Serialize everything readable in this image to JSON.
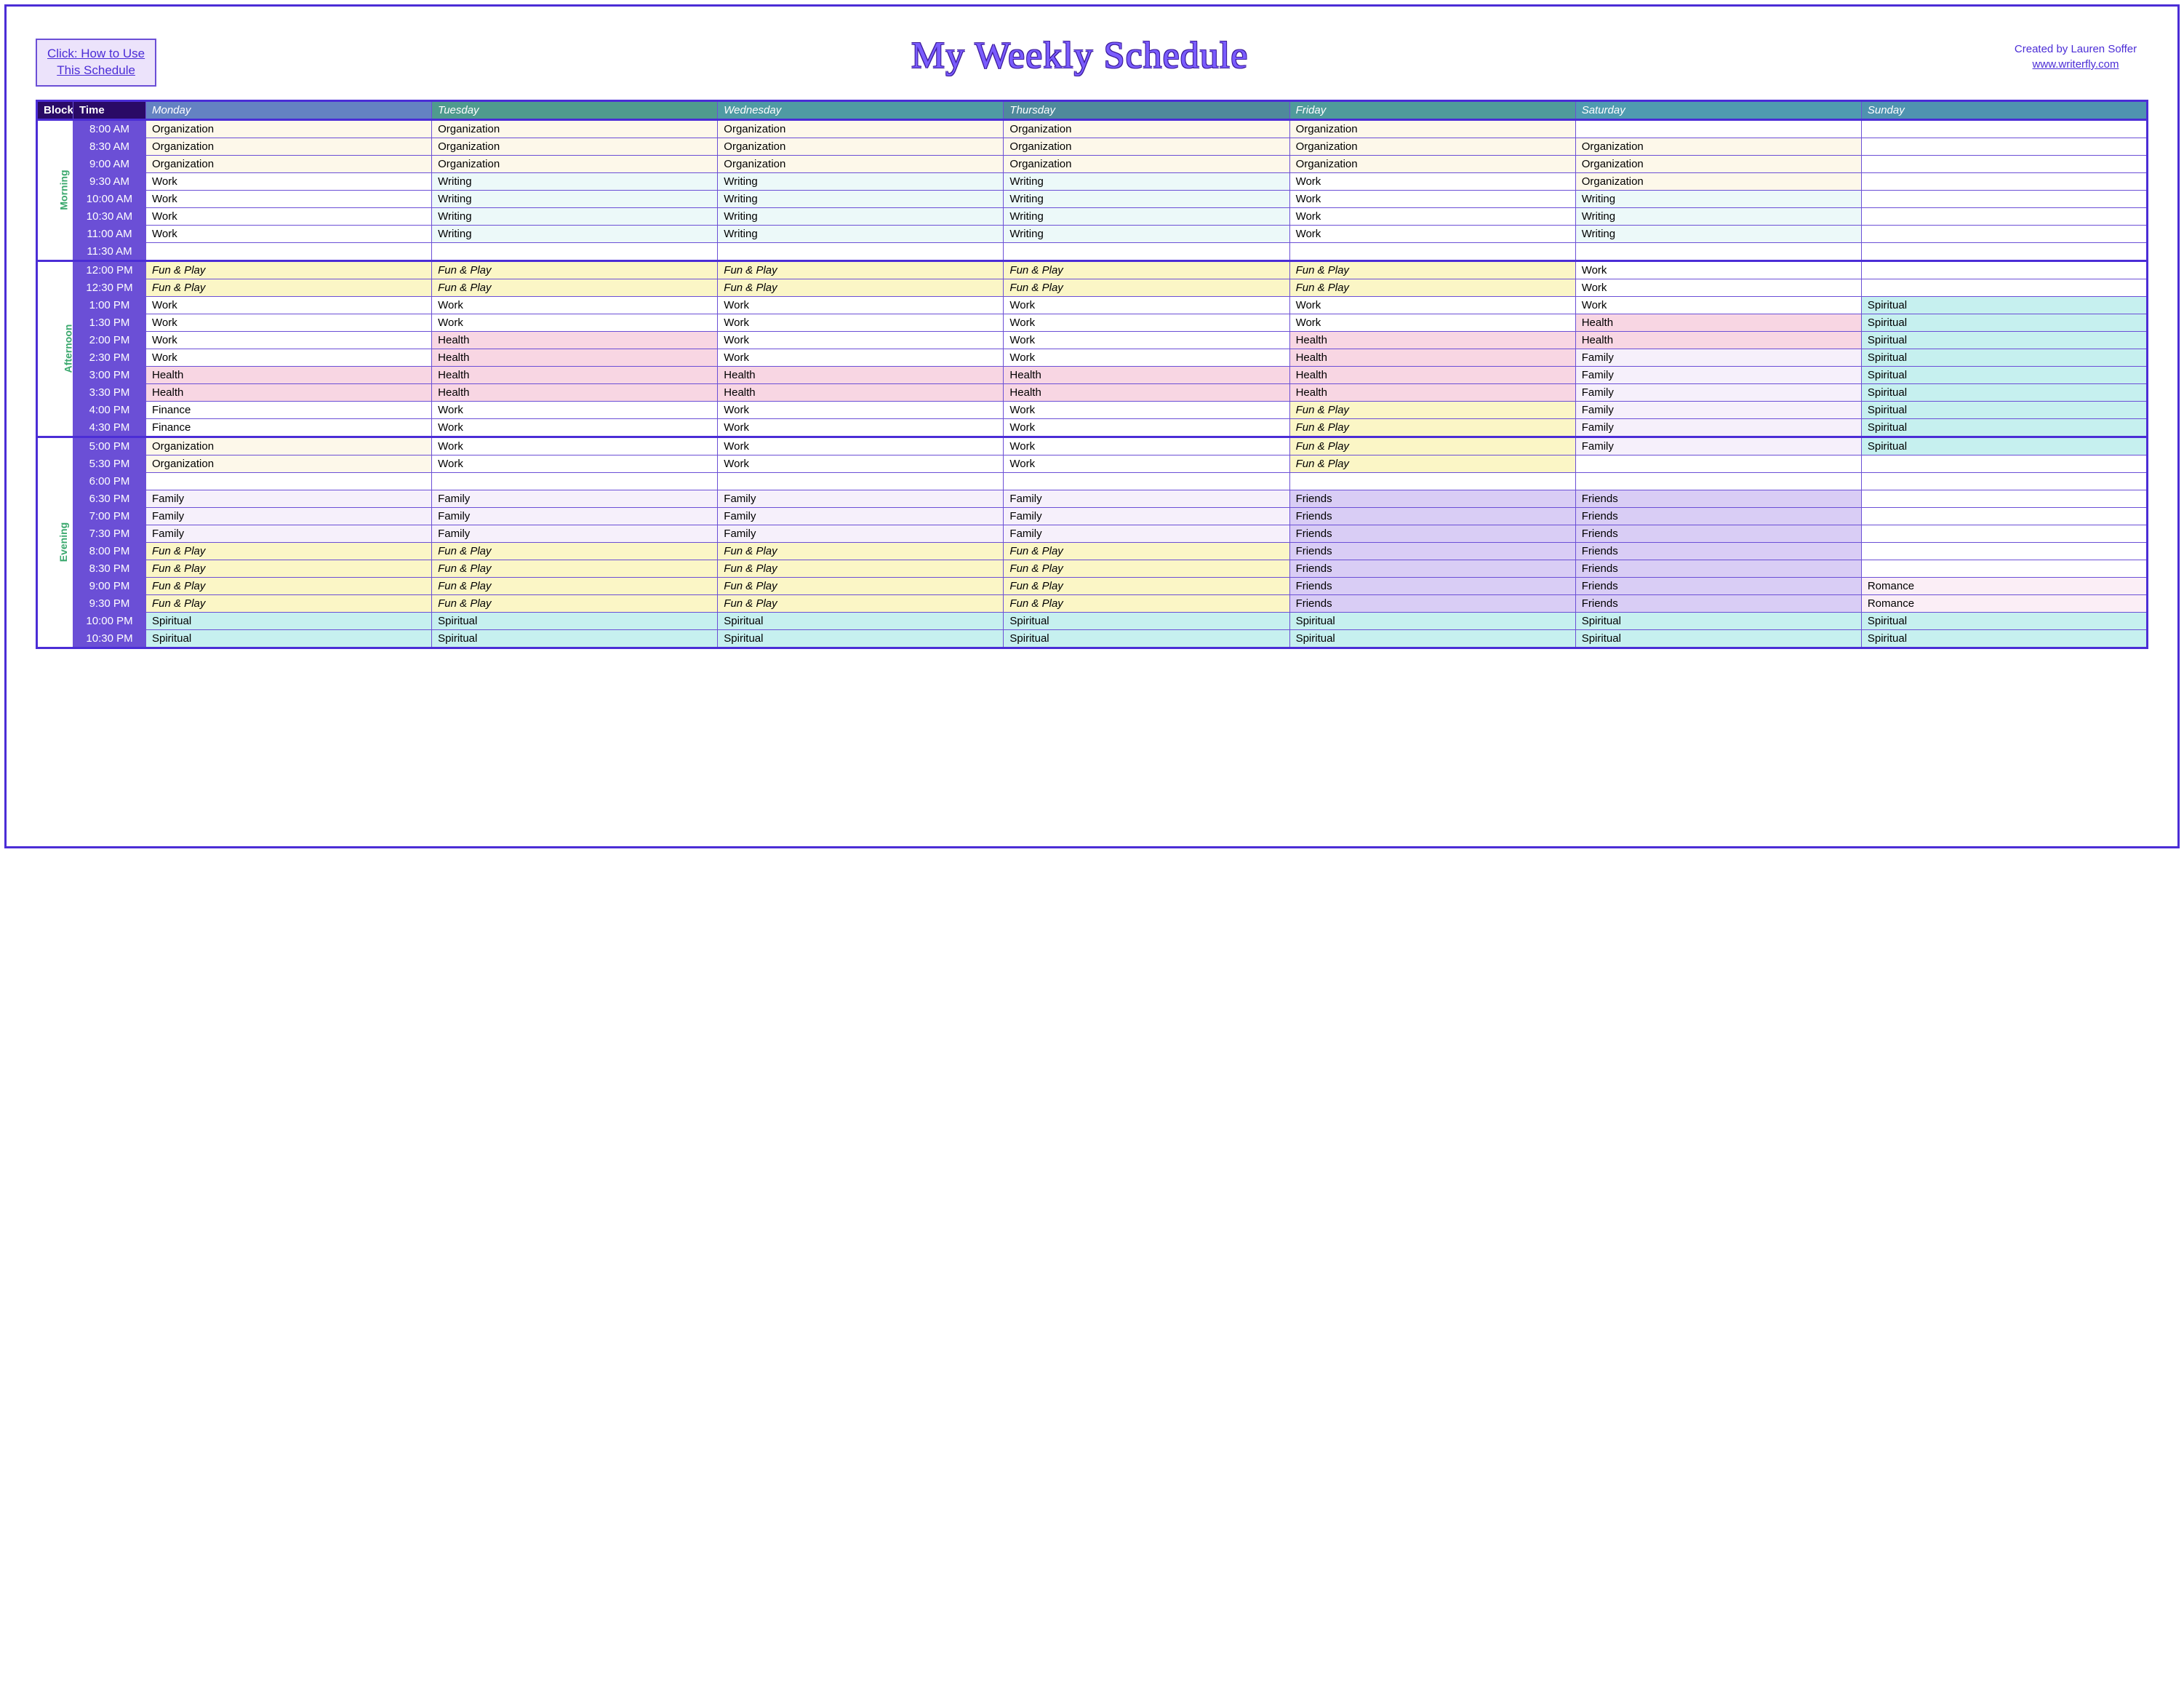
{
  "helpBox": {
    "line1": "Click:  How to Use",
    "line2": "This Schedule"
  },
  "title": "My Weekly Schedule",
  "credits": {
    "author": "Created by Lauren Soffer",
    "url": "www.writerfly.com"
  },
  "activityClasses": {
    "Organization": "c-organization",
    "Work": "c-work",
    "Writing": "c-writing",
    "Fun & Play": "c-funplay",
    "Health": "c-health",
    "Family": "c-family",
    "Friends": "c-friends",
    "Spiritual": "c-spiritual",
    "Romance": "c-romance",
    "Finance": "c-finance",
    "": "c-blank"
  },
  "headers": {
    "block": "Block",
    "time": "Time",
    "days": [
      "Monday",
      "Tuesday",
      "Wednesday",
      "Thursday",
      "Friday",
      "Saturday",
      "Sunday"
    ],
    "dayClasses": [
      "mon",
      "tue",
      "wed",
      "thu",
      "fri",
      "sat",
      "sun"
    ]
  },
  "blocks": [
    {
      "name": "Morning",
      "rows": [
        {
          "time": "8:00 AM",
          "cells": [
            "Organization",
            "Organization",
            "Organization",
            "Organization",
            "Organization",
            "",
            ""
          ]
        },
        {
          "time": "8:30 AM",
          "cells": [
            "Organization",
            "Organization",
            "Organization",
            "Organization",
            "Organization",
            "Organization",
            ""
          ]
        },
        {
          "time": "9:00 AM",
          "cells": [
            "Organization",
            "Organization",
            "Organization",
            "Organization",
            "Organization",
            "Organization",
            ""
          ]
        },
        {
          "time": "9:30 AM",
          "cells": [
            "Work",
            "Writing",
            "Writing",
            "Writing",
            "Work",
            "Organization",
            ""
          ]
        },
        {
          "time": "10:00 AM",
          "cells": [
            "Work",
            "Writing",
            "Writing",
            "Writing",
            "Work",
            "Writing",
            ""
          ]
        },
        {
          "time": "10:30 AM",
          "cells": [
            "Work",
            "Writing",
            "Writing",
            "Writing",
            "Work",
            "Writing",
            ""
          ]
        },
        {
          "time": "11:00 AM",
          "cells": [
            "Work",
            "Writing",
            "Writing",
            "Writing",
            "Work",
            "Writing",
            ""
          ]
        },
        {
          "time": "11:30 AM",
          "cells": [
            "",
            "",
            "",
            "",
            "",
            "",
            ""
          ]
        }
      ]
    },
    {
      "name": "Afternoon",
      "rows": [
        {
          "time": "12:00 PM",
          "cells": [
            "Fun & Play",
            "Fun & Play",
            "Fun & Play",
            "Fun & Play",
            "Fun & Play",
            "Work",
            ""
          ]
        },
        {
          "time": "12:30 PM",
          "cells": [
            "Fun & Play",
            "Fun & Play",
            "Fun & Play",
            "Fun & Play",
            "Fun & Play",
            "Work",
            ""
          ]
        },
        {
          "time": "1:00 PM",
          "cells": [
            "Work",
            "Work",
            "Work",
            "Work",
            "Work",
            "Work",
            "Spiritual"
          ]
        },
        {
          "time": "1:30 PM",
          "cells": [
            "Work",
            "Work",
            "Work",
            "Work",
            "Work",
            "Health",
            "Spiritual"
          ]
        },
        {
          "time": "2:00 PM",
          "cells": [
            "Work",
            "Health",
            "Work",
            "Work",
            "Health",
            "Health",
            "Spiritual"
          ]
        },
        {
          "time": "2:30 PM",
          "cells": [
            "Work",
            "Health",
            "Work",
            "Work",
            "Health",
            "Family",
            "Spiritual"
          ]
        },
        {
          "time": "3:00 PM",
          "cells": [
            "Health",
            "Health",
            "Health",
            "Health",
            "Health",
            "Family",
            "Spiritual"
          ]
        },
        {
          "time": "3:30 PM",
          "cells": [
            "Health",
            "Health",
            "Health",
            "Health",
            "Health",
            "Family",
            "Spiritual"
          ]
        },
        {
          "time": "4:00 PM",
          "cells": [
            "Finance",
            "Work",
            "Work",
            "Work",
            "Fun & Play",
            "Family",
            "Spiritual"
          ]
        },
        {
          "time": "4:30 PM",
          "cells": [
            "Finance",
            "Work",
            "Work",
            "Work",
            "Fun & Play",
            "Family",
            "Spiritual"
          ]
        }
      ]
    },
    {
      "name": "Evening",
      "rows": [
        {
          "time": "5:00 PM",
          "cells": [
            "Organization",
            "Work",
            "Work",
            "Work",
            "Fun & Play",
            "Family",
            "Spiritual"
          ]
        },
        {
          "time": "5:30 PM",
          "cells": [
            "Organization",
            "Work",
            "Work",
            "Work",
            "Fun & Play",
            "",
            ""
          ]
        },
        {
          "time": "6:00 PM",
          "cells": [
            "",
            "",
            "",
            "",
            "",
            "",
            ""
          ]
        },
        {
          "time": "6:30 PM",
          "cells": [
            "Family",
            "Family",
            "Family",
            "Family",
            "Friends",
            "Friends",
            ""
          ]
        },
        {
          "time": "7:00 PM",
          "cells": [
            "Family",
            "Family",
            "Family",
            "Family",
            "Friends",
            "Friends",
            ""
          ]
        },
        {
          "time": "7:30 PM",
          "cells": [
            "Family",
            "Family",
            "Family",
            "Family",
            "Friends",
            "Friends",
            ""
          ]
        },
        {
          "time": "8:00 PM",
          "cells": [
            "Fun & Play",
            "Fun & Play",
            "Fun & Play",
            "Fun & Play",
            "Friends",
            "Friends",
            ""
          ]
        },
        {
          "time": "8:30 PM",
          "cells": [
            "Fun & Play",
            "Fun & Play",
            "Fun & Play",
            "Fun & Play",
            "Friends",
            "Friends",
            ""
          ]
        },
        {
          "time": "9:00 PM",
          "cells": [
            "Fun & Play",
            "Fun & Play",
            "Fun & Play",
            "Fun & Play",
            "Friends",
            "Friends",
            "Romance"
          ]
        },
        {
          "time": "9:30 PM",
          "cells": [
            "Fun & Play",
            "Fun & Play",
            "Fun & Play",
            "Fun & Play",
            "Friends",
            "Friends",
            "Romance"
          ]
        },
        {
          "time": "10:00 PM",
          "cells": [
            "Spiritual",
            "Spiritual",
            "Spiritual",
            "Spiritual",
            "Spiritual",
            "Spiritual",
            "Spiritual"
          ]
        },
        {
          "time": "10:30 PM",
          "cells": [
            "Spiritual",
            "Spiritual",
            "Spiritual",
            "Spiritual",
            "Spiritual",
            "Spiritual",
            "Spiritual"
          ]
        }
      ]
    }
  ]
}
